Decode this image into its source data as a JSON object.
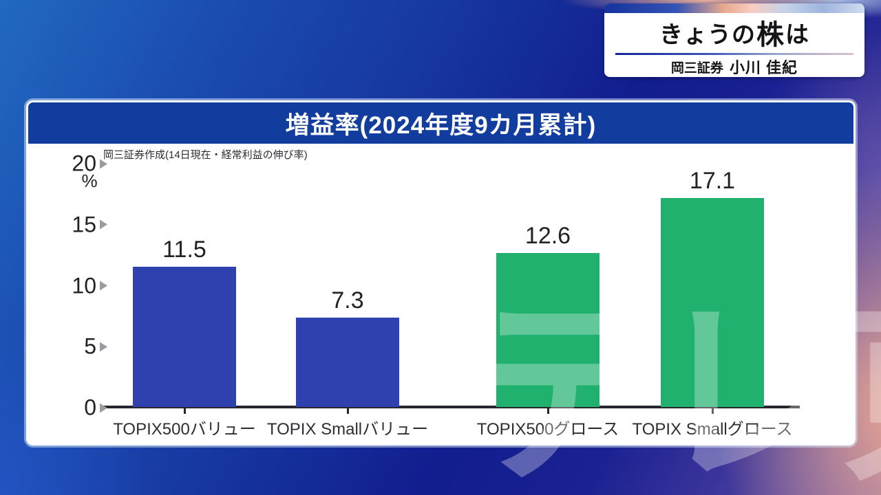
{
  "header": {
    "title_prefix": "きょうの",
    "title_emphasis": "株",
    "title_suffix": "は",
    "company": "岡三証券",
    "person": "小川 佳紀"
  },
  "chart_data": {
    "type": "bar",
    "title": "増益率(2024年度9カ月累計)",
    "note": "岡三証券作成(14日現在・経常利益の伸び率)",
    "unit": "%",
    "categories": [
      "TOPIX500バリュー",
      "TOPIX Smallバリュー",
      "TOPIX500グロース",
      "TOPIX Smallグロース"
    ],
    "values": [
      11.5,
      7.3,
      12.6,
      17.1
    ],
    "bar_colors": [
      "#2e41ae",
      "#2e41ae",
      "#1fb16d",
      "#1fb16d"
    ],
    "y_ticks": [
      0,
      5,
      10,
      15,
      20
    ],
    "ylim": [
      0,
      20
    ],
    "grid": false,
    "legend": false,
    "value_labels": true
  },
  "watermark": "テレ東",
  "colors": {
    "title_bar": "#123d9f",
    "value_bar_blue": "#2e41ae",
    "value_bar_green": "#1fb16d",
    "axis": "#26262c",
    "tick_arrow": "#9b9ba1"
  }
}
